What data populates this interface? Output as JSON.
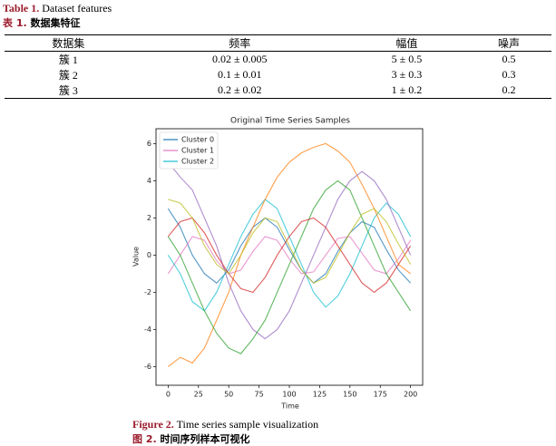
{
  "table": {
    "caption": {
      "label_en": "Table 1.",
      "title_en": "Dataset features",
      "label_zh": "表 1.",
      "title_zh": "数据集特征"
    },
    "header": [
      "数据集",
      "频率",
      "幅值",
      "噪声"
    ],
    "rows": [
      [
        "簇 1",
        "0.02 ± 0.005",
        "5 ± 0.5",
        "0.5"
      ],
      [
        "簇 2",
        "0.1 ± 0.01",
        "3 ± 0.3",
        "0.3"
      ],
      [
        "簇 3",
        "0.2 ± 0.02",
        "1 ± 0.2",
        "0.2"
      ]
    ]
  },
  "chart_data": {
    "type": "line",
    "title": "Original Time Series Samples",
    "x_label": "Time",
    "y_label": "Value",
    "x": [
      0,
      10,
      20,
      30,
      40,
      50,
      60,
      70,
      80,
      90,
      100,
      110,
      120,
      130,
      140,
      150,
      160,
      170,
      180,
      190,
      200
    ],
    "series": [
      {
        "name": "Cluster 0",
        "color": "#1f77b4",
        "values": [
          2.5,
          1.5,
          0,
          -1,
          -1.5,
          -0.8,
          0.5,
          1.5,
          2,
          1.5,
          0.3,
          -0.8,
          -1.5,
          -1,
          0.2,
          1.2,
          1.8,
          1.5,
          0.3,
          -0.8,
          -1.5
        ]
      },
      {
        "name": "Cluster 1",
        "color": "#e377c2",
        "values": [
          -1,
          0,
          1,
          0.8,
          -0.3,
          -1,
          -0.8,
          0.2,
          1,
          0.8,
          -0.2,
          -1,
          -0.9,
          0,
          0.9,
          1,
          0.1,
          -0.8,
          -1,
          -0.2,
          0.8
        ]
      },
      {
        "name": "Cluster 2",
        "color": "#17becf",
        "values": [
          0,
          -1,
          -2.5,
          -3,
          -2,
          -0.5,
          1,
          2.2,
          3,
          2.5,
          1,
          -0.5,
          -2,
          -2.8,
          -2.2,
          -1,
          0.5,
          2,
          2.8,
          2.2,
          1
        ]
      },
      {
        "color": "#ff7f0e",
        "values": [
          -6,
          -5.5,
          -5.8,
          -5,
          -3.5,
          -2,
          0,
          1.5,
          3,
          4.2,
          5,
          5.5,
          5.8,
          6,
          5.6,
          5,
          3.8,
          2.5,
          1,
          -0.5,
          -1
        ]
      },
      {
        "color": "#9467bd",
        "values": [
          5,
          4.2,
          3.5,
          2,
          0.5,
          -1.5,
          -3,
          -4,
          -4.5,
          -4,
          -3,
          -1.5,
          0,
          1.5,
          3,
          4,
          4.5,
          4,
          3,
          1.5,
          0
        ]
      },
      {
        "color": "#2ca02c",
        "values": [
          1,
          0,
          -1.5,
          -3,
          -4.2,
          -5,
          -5.3,
          -4.5,
          -3.5,
          -2,
          -0.5,
          1,
          2.5,
          3.5,
          4,
          3.5,
          2,
          0.5,
          -1,
          -2,
          -3
        ]
      },
      {
        "color": "#d62728",
        "values": [
          1,
          1.8,
          2,
          1.2,
          0,
          -1,
          -1.8,
          -2,
          -1.2,
          0,
          1,
          1.8,
          2,
          1.5,
          0.5,
          -0.5,
          -1.5,
          -2,
          -1.5,
          -0.5,
          0.5
        ]
      },
      {
        "color": "#bcbd22",
        "values": [
          3,
          2.8,
          2,
          0.5,
          -0.5,
          -1,
          0,
          1.2,
          2,
          1.8,
          0.5,
          -0.8,
          -1.5,
          -1.2,
          0,
          1.2,
          2.2,
          2.5,
          1.8,
          0.6,
          -0.5
        ]
      }
    ],
    "xlim": [
      -10,
      210
    ],
    "ylim": [
      -7,
      6.8
    ],
    "xticks": [
      0,
      25,
      50,
      75,
      100,
      125,
      150,
      175,
      200
    ],
    "yticks": [
      -6,
      -4,
      -2,
      0,
      2,
      4,
      6
    ],
    "legend": "upper left"
  },
  "figure_caption": {
    "label_en": "Figure 2.",
    "title_en": "Time series sample visualization",
    "label_zh": "图 2.",
    "title_zh": "时间序列样本可视化"
  }
}
